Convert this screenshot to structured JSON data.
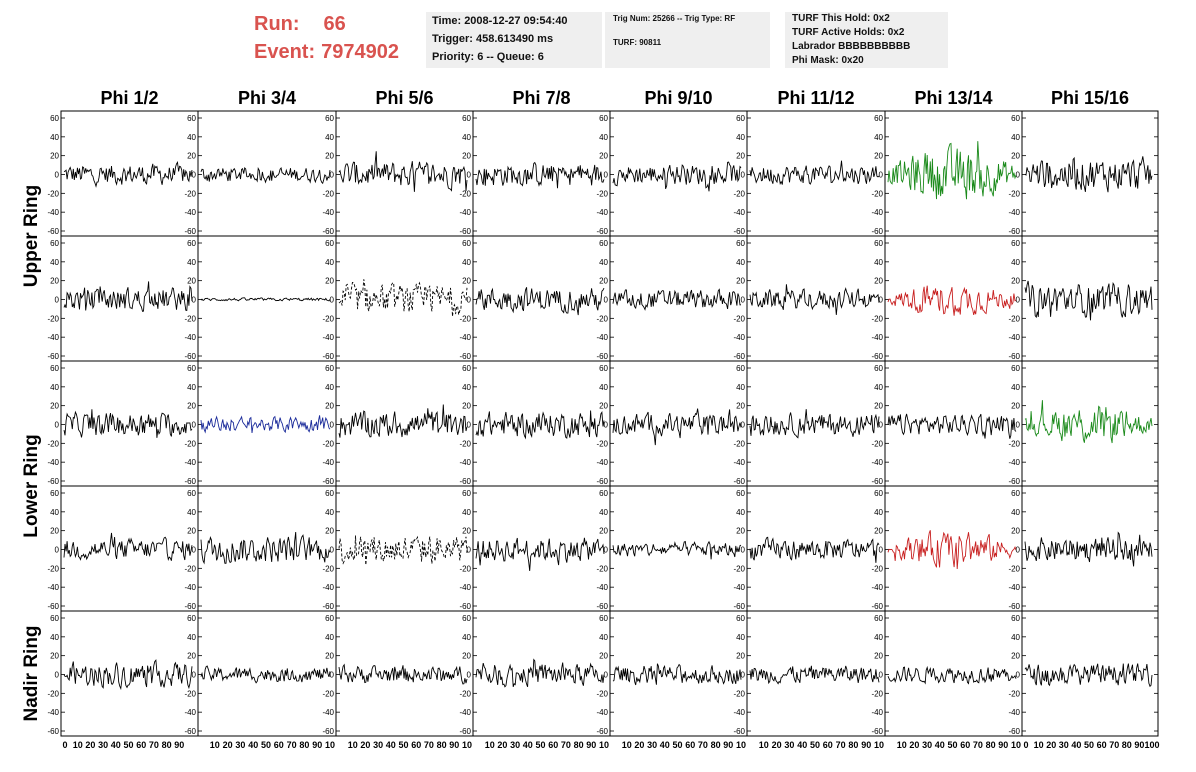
{
  "header": {
    "run_label": "Run:",
    "run_value": "66",
    "event_label": "Event:",
    "event_value": "7974902"
  },
  "info_time": {
    "time": "Time: 2008-12-27 09:54:40",
    "trigger": "Trigger: 458.613490 ms",
    "priority": "Priority: 6 -- Queue: 6"
  },
  "info_trig": {
    "trig": "Trig Num: 25266 -- Trig Type: RF",
    "turf": "TURF: 90811"
  },
  "info_turf": {
    "hold": "TURF This Hold: 0x2",
    "active": "TURF Active Holds: 0x2",
    "labrador": "Labrador BBBBBBBBBB",
    "mask": "Phi Mask: 0x20"
  },
  "chart_data": {
    "type": "line",
    "columns": [
      "Phi 1/2",
      "Phi 3/4",
      "Phi 5/6",
      "Phi 7/8",
      "Phi 9/10",
      "Phi 11/12",
      "Phi 13/14",
      "Phi 15/16"
    ],
    "rows": [
      "Upper Ring",
      "Lower Ring",
      "Nadir Ring"
    ],
    "ylim": [
      -60,
      60
    ],
    "yticks": [
      "60",
      "40",
      "20",
      "0",
      "-20",
      "-40",
      "-60"
    ],
    "xlim": [
      0,
      100
    ],
    "xticks": [
      "0",
      "10",
      "20",
      "30",
      "40",
      "50",
      "60",
      "70",
      "80",
      "90",
      "100"
    ],
    "xticks_short": [
      "10",
      "20",
      "30",
      "40",
      "50",
      "60",
      "70",
      "80",
      "90",
      "10"
    ],
    "colors": {
      "default": "#000000",
      "green": "#1a8a1a",
      "red": "#c82020",
      "blue": "#1a2a9a"
    },
    "traces": [
      [
        {
          "amp": 14,
          "color": "default"
        },
        {
          "amp": 10,
          "color": "default"
        },
        {
          "amp": 18,
          "color": "default"
        },
        {
          "amp": 16,
          "color": "default"
        },
        {
          "amp": 14,
          "color": "default"
        },
        {
          "amp": 13,
          "color": "default"
        },
        {
          "amp": 30,
          "color": "green"
        },
        {
          "amp": 22,
          "color": "default"
        }
      ],
      [
        {
          "amp": 16,
          "color": "default"
        },
        {
          "amp": 2,
          "color": "default"
        },
        {
          "amp": 20,
          "color": "default",
          "dashed": true
        },
        {
          "amp": 16,
          "color": "default"
        },
        {
          "amp": 13,
          "color": "default"
        },
        {
          "amp": 13,
          "color": "default"
        },
        {
          "amp": 18,
          "color": "red"
        },
        {
          "amp": 22,
          "color": "default"
        }
      ],
      [
        {
          "amp": 16,
          "color": "default"
        },
        {
          "amp": 10,
          "color": "blue"
        },
        {
          "amp": 18,
          "color": "default"
        },
        {
          "amp": 17,
          "color": "default"
        },
        {
          "amp": 15,
          "color": "default"
        },
        {
          "amp": 15,
          "color": "default"
        },
        {
          "amp": 14,
          "color": "default"
        },
        {
          "amp": 22,
          "color": "green"
        }
      ],
      [
        {
          "amp": 14,
          "color": "default"
        },
        {
          "amp": 18,
          "color": "default"
        },
        {
          "amp": 20,
          "color": "default",
          "dashed": true
        },
        {
          "amp": 16,
          "color": "default"
        },
        {
          "amp": 10,
          "color": "default"
        },
        {
          "amp": 14,
          "color": "default"
        },
        {
          "amp": 20,
          "color": "red"
        },
        {
          "amp": 16,
          "color": "default"
        }
      ],
      [
        {
          "amp": 16,
          "color": "default"
        },
        {
          "amp": 10,
          "color": "default"
        },
        {
          "amp": 12,
          "color": "default"
        },
        {
          "amp": 15,
          "color": "default"
        },
        {
          "amp": 12,
          "color": "default"
        },
        {
          "amp": 12,
          "color": "default"
        },
        {
          "amp": 11,
          "color": "default"
        },
        {
          "amp": 14,
          "color": "default"
        }
      ]
    ]
  }
}
